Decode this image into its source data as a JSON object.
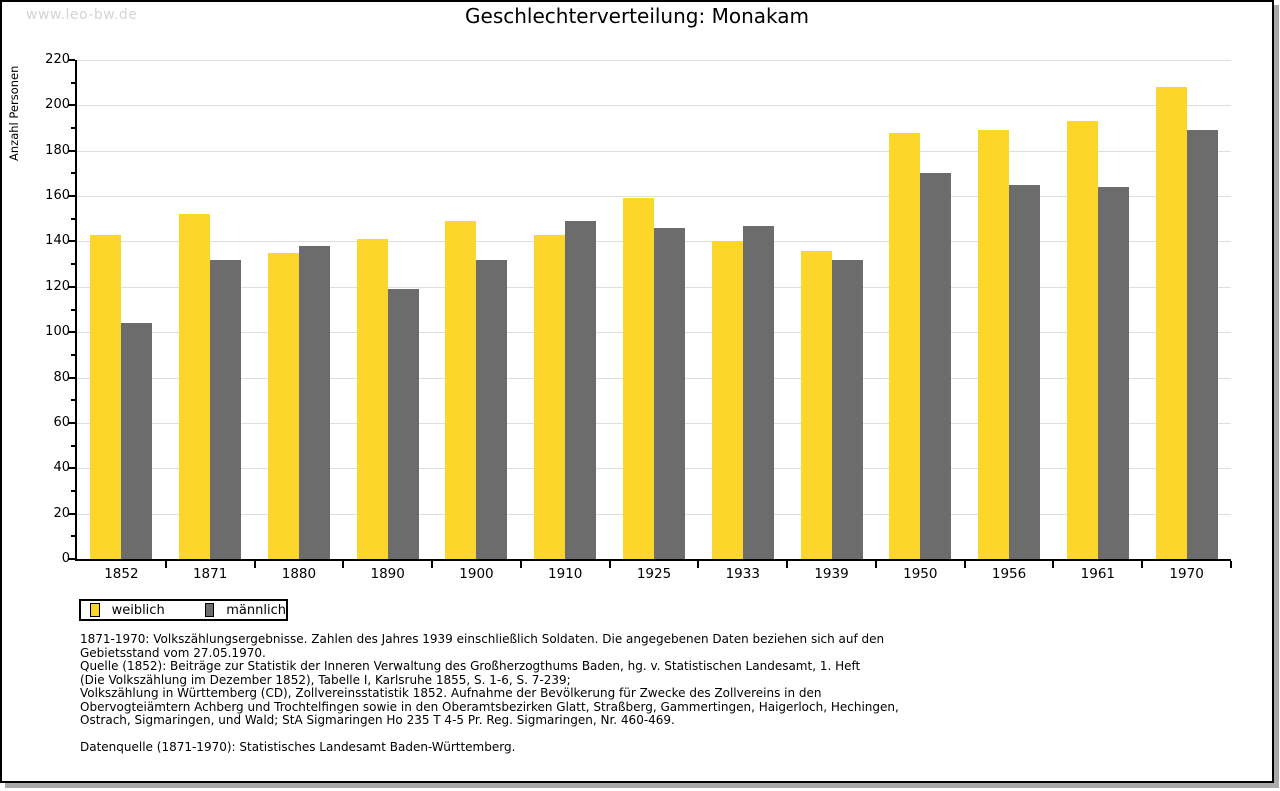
{
  "page": {
    "watermark": "www.leo-bw.de",
    "title": "Geschlechterverteilung: Monakam"
  },
  "chart_data": {
    "type": "bar",
    "title": "Geschlechterverteilung: Monakam",
    "xlabel": "",
    "ylabel": "Anzahl Personen",
    "categories": [
      "1852",
      "1871",
      "1880",
      "1890",
      "1900",
      "1910",
      "1925",
      "1933",
      "1939",
      "1950",
      "1956",
      "1961",
      "1970"
    ],
    "series": [
      {
        "name": "weiblich",
        "color": "#FCD62B",
        "values": [
          143,
          152,
          135,
          141,
          149,
          143,
          159,
          140,
          136,
          188,
          189,
          193,
          208
        ]
      },
      {
        "name": "männlich",
        "color": "#6C6C6C",
        "values": [
          104,
          132,
          138,
          119,
          132,
          149,
          146,
          147,
          132,
          170,
          165,
          164,
          189
        ]
      }
    ],
    "ylim": [
      0,
      220
    ],
    "ytick_step": 20,
    "ytick_minor_step": 10,
    "grid": true,
    "legend_position": "bottom-left",
    "bar_color_yellow": "#FCD62B",
    "bar_color_gray": "#6C6C6C",
    "gridline_color": "#dedede"
  },
  "notes": {
    "lines": [
      "1871-1970: Volkszählungsergebnisse. Zahlen des Jahres 1939 einschließlich Soldaten. Die angegebenen Daten beziehen sich auf den",
      "Gebietsstand vom 27.05.1970.",
      "Quelle (1852): Beiträge zur Statistik der Inneren Verwaltung des Großherzogthums Baden, hg. v. Statistischen Landesamt, 1. Heft",
      "(Die Volkszählung im Dezember 1852), Tabelle I, Karlsruhe 1855, S. 1-6, S. 7-239;",
      "Volkszählung in Württemberg (CD), Zollvereinsstatistik 1852. Aufnahme der Bevölkerung für Zwecke des Zollvereins in den",
      "Obervogteiämtern Achberg und Trochtelfingen sowie in den Oberamtsbezirken Glatt, Straßberg, Gammertingen, Haigerloch, Hechingen,",
      "Ostrach, Sigmaringen, und Wald; StA Sigmaringen Ho 235 T 4-5 Pr. Reg. Sigmaringen, Nr. 460-469."
    ],
    "source_line": "Datenquelle (1871-1970): Statistisches Landesamt Baden-Württemberg."
  }
}
